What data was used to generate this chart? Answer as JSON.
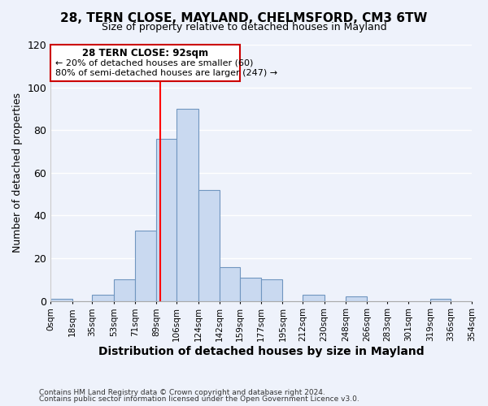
{
  "title": "28, TERN CLOSE, MAYLAND, CHELMSFORD, CM3 6TW",
  "subtitle": "Size of property relative to detached houses in Mayland",
  "xlabel": "Distribution of detached houses by size in Mayland",
  "ylabel": "Number of detached properties",
  "bin_edges": [
    0,
    18,
    35,
    53,
    71,
    89,
    106,
    124,
    142,
    159,
    177,
    195,
    212,
    230,
    248,
    266,
    283,
    301,
    319,
    336,
    354
  ],
  "bin_labels": [
    "0sqm",
    "18sqm",
    "35sqm",
    "53sqm",
    "71sqm",
    "89sqm",
    "106sqm",
    "124sqm",
    "142sqm",
    "159sqm",
    "177sqm",
    "195sqm",
    "212sqm",
    "230sqm",
    "248sqm",
    "266sqm",
    "283sqm",
    "301sqm",
    "319sqm",
    "336sqm",
    "354sqm"
  ],
  "counts": [
    1,
    0,
    3,
    10,
    33,
    76,
    90,
    52,
    16,
    11,
    10,
    0,
    3,
    0,
    2,
    0,
    0,
    0,
    1,
    0
  ],
  "bar_color": "#c9d9f0",
  "bar_edge_color": "#7096c0",
  "redline_x": 92,
  "ylim": [
    0,
    120
  ],
  "yticks": [
    0,
    20,
    40,
    60,
    80,
    100,
    120
  ],
  "annotation_title": "28 TERN CLOSE: 92sqm",
  "annotation_line1": "← 20% of detached houses are smaller (60)",
  "annotation_line2": "80% of semi-detached houses are larger (247) →",
  "annotation_box_color": "#ffffff",
  "annotation_box_edge": "#cc0000",
  "footer_line1": "Contains HM Land Registry data © Crown copyright and database right 2024.",
  "footer_line2": "Contains public sector information licensed under the Open Government Licence v3.0.",
  "background_color": "#eef2fb",
  "grid_color": "#ffffff"
}
